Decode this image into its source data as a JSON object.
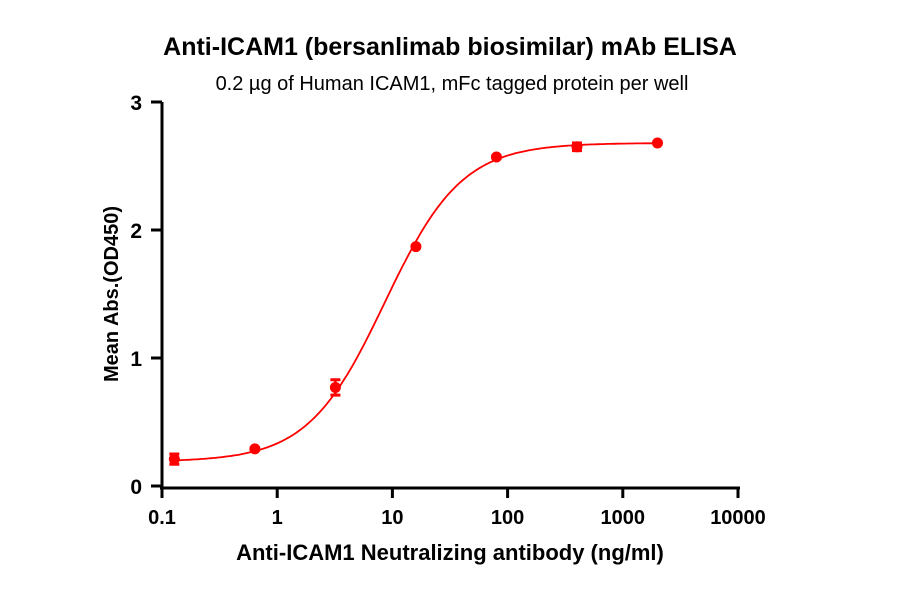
{
  "chart_data": {
    "type": "scatter",
    "title": "Anti-ICAM1 (bersanlimab biosimilar) mAb ELISA",
    "subtitle": "0.2 µg of Human ICAM1, mFc tagged protein per well",
    "xlabel": "Anti-ICAM1 Neutralizing antibody (ng/ml)",
    "ylabel": "Mean Abs.(OD450)",
    "x_scale": "log",
    "xlim": [
      0.1,
      10000
    ],
    "ylim": [
      0,
      3
    ],
    "x_ticks": [
      "0.1",
      "1",
      "10",
      "100",
      "1000",
      "10000"
    ],
    "x_tick_values": [
      0.1,
      1,
      10,
      100,
      1000,
      10000
    ],
    "y_ticks": [
      "0",
      "1",
      "2",
      "3"
    ],
    "y_tick_values": [
      0,
      1,
      2,
      3
    ],
    "grid": false,
    "color": "#ff0000",
    "series": [
      {
        "x": [
          0.128,
          0.64,
          3.2,
          16,
          80,
          400,
          2000
        ],
        "y": [
          0.21,
          0.29,
          0.77,
          1.87,
          2.57,
          2.65,
          2.68
        ],
        "error": [
          0.04,
          0.01,
          0.06,
          0.01,
          0.01,
          0.03,
          0.01
        ],
        "fit": "sigmoidal curve"
      }
    ]
  }
}
